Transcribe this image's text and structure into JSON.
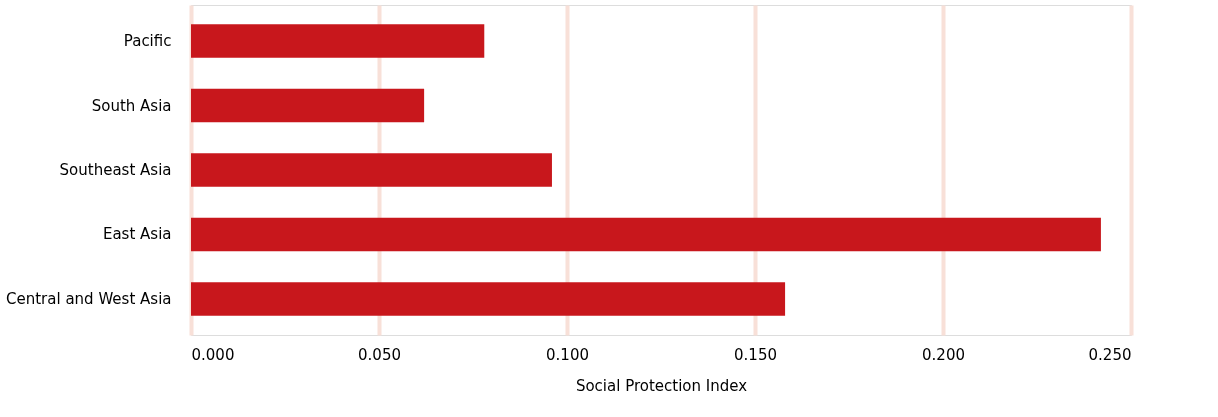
{
  "chart_data": {
    "type": "bar",
    "orientation": "horizontal",
    "xlabel": "Social Protection Index",
    "categories": [
      "Pacific",
      "South Asia",
      "Southeast Asia",
      "East Asia",
      "Central and West Asia"
    ],
    "values": [
      0.078,
      0.062,
      0.096,
      0.242,
      0.158
    ],
    "color": "#c8171c",
    "xlim": [
      0,
      0.25
    ],
    "xticks": [
      {
        "value": 0,
        "label": "0.000"
      },
      {
        "value": 0.05,
        "label": "0.050"
      },
      {
        "value": 0.1,
        "label": "0.100"
      },
      {
        "value": 0.15,
        "label": "0.150"
      },
      {
        "value": 0.2,
        "label": "0.200"
      },
      {
        "value": 0.25,
        "label": "0.250"
      }
    ],
    "grid": "x"
  }
}
